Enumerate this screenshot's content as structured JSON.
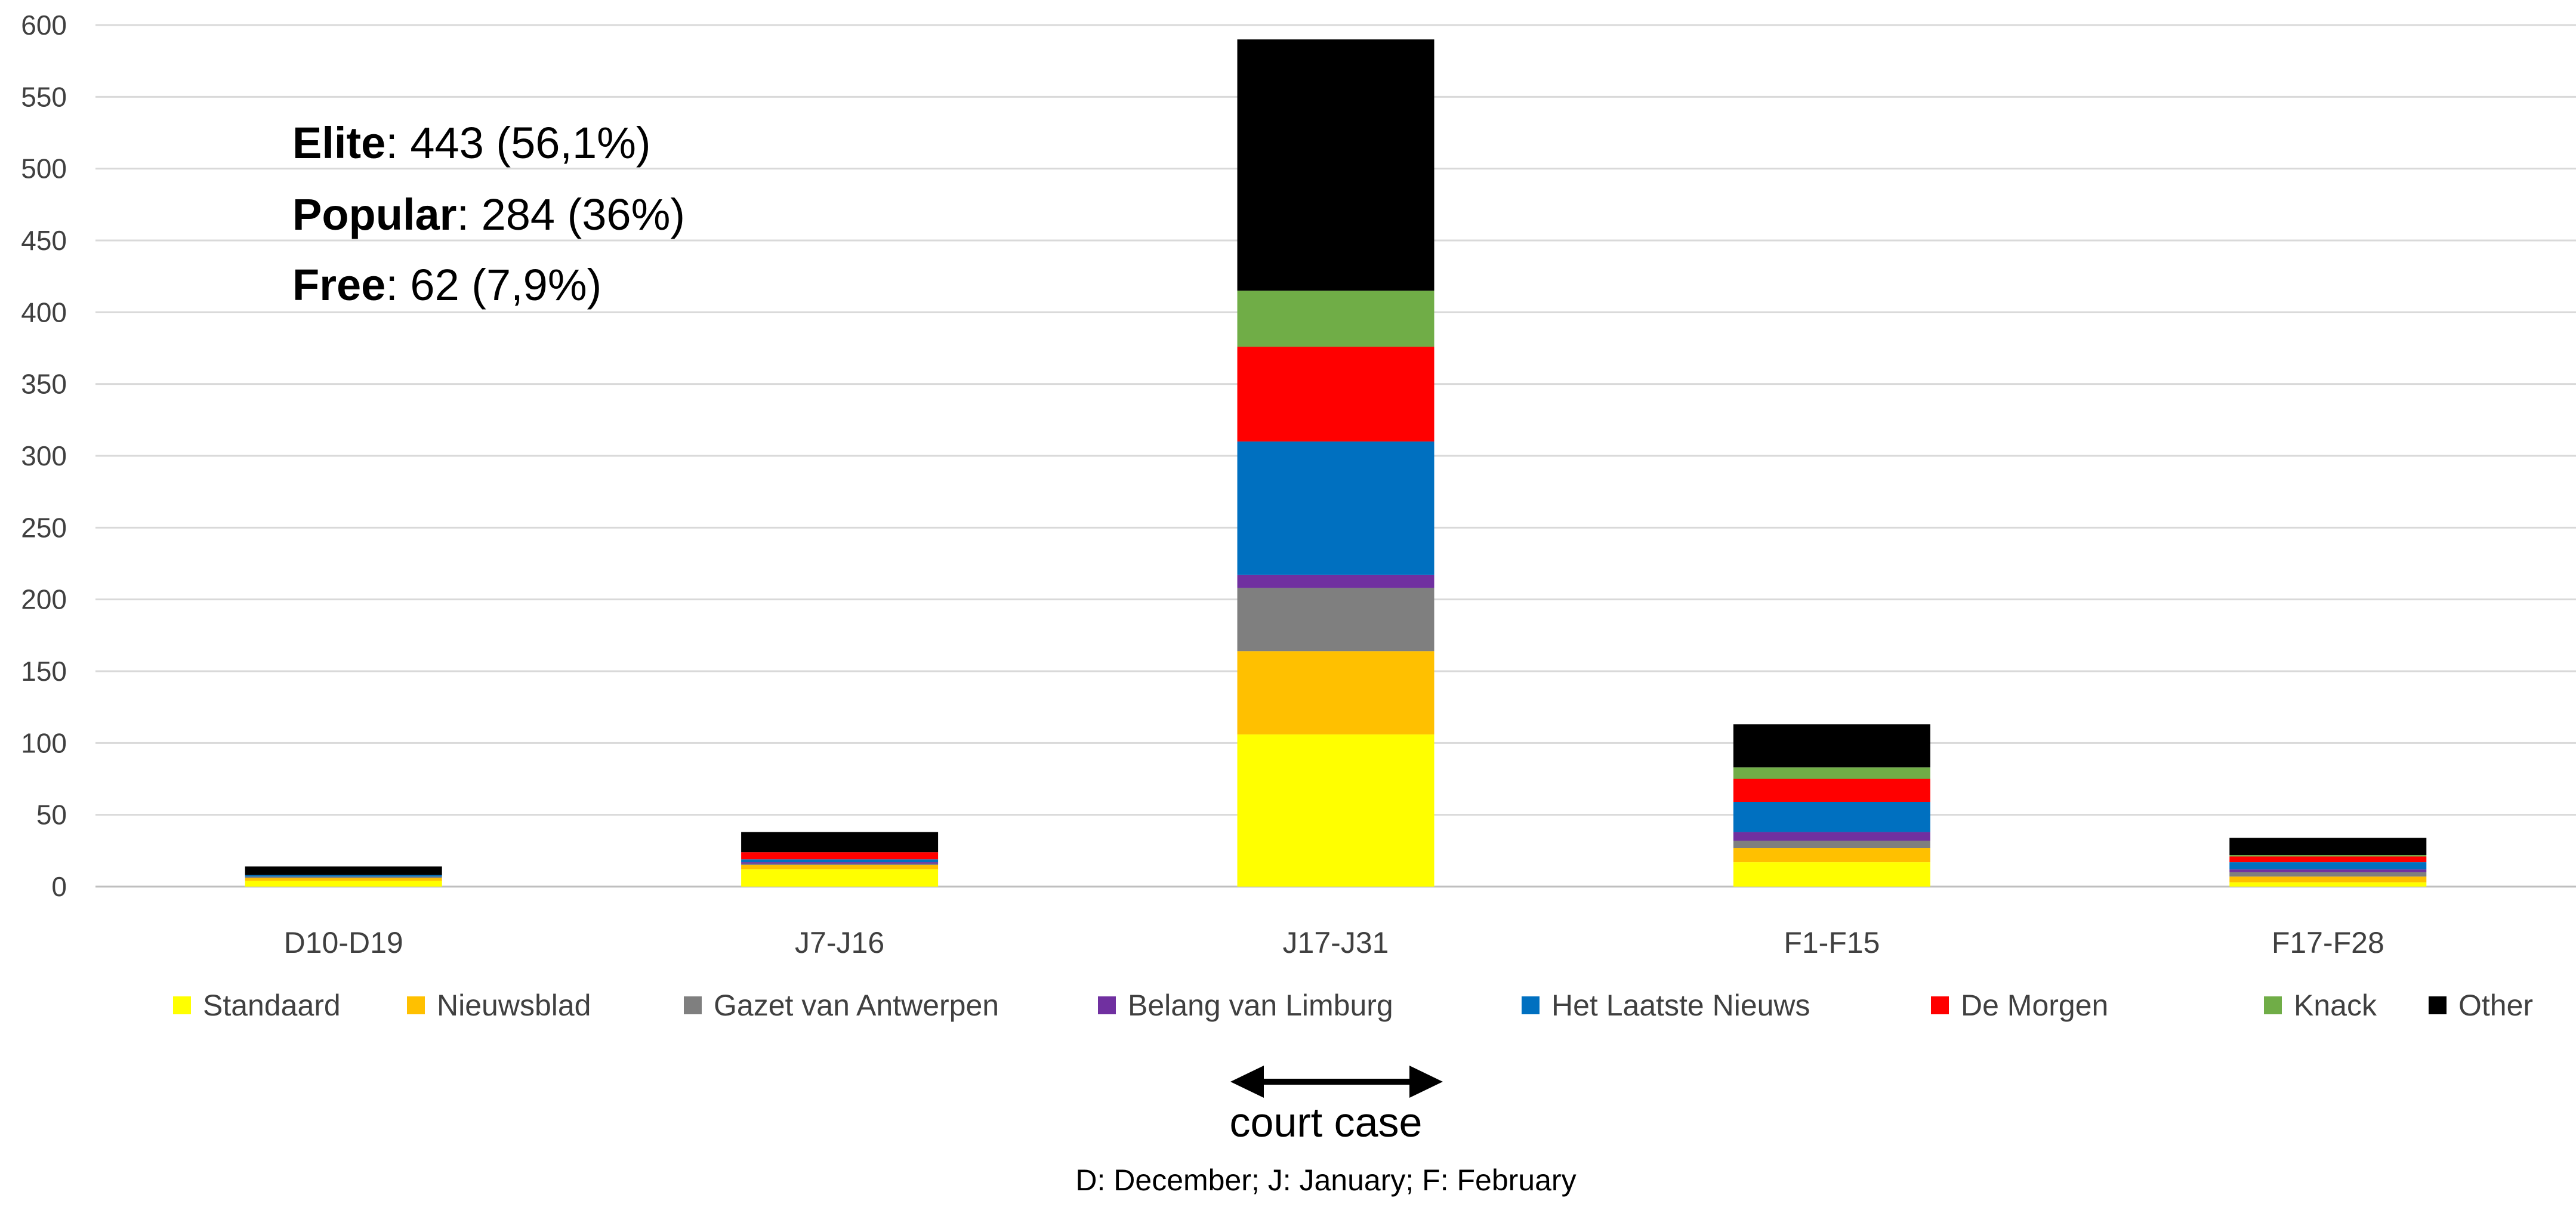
{
  "chart_data": {
    "type": "bar",
    "stacked": true,
    "categories": [
      "D10-D19",
      "J7-J16",
      "J17-J31",
      "F1-F15",
      "F17-F28"
    ],
    "ylim": [
      0,
      600
    ],
    "yticks": [
      0,
      50,
      100,
      150,
      200,
      250,
      300,
      350,
      400,
      450,
      500,
      550,
      600
    ],
    "grid": true,
    "legend_position": "bottom",
    "series": [
      {
        "name": "Standaard",
        "color": "#FFFF00",
        "values": [
          4,
          12,
          106,
          17,
          3
        ]
      },
      {
        "name": "Nieuwsblad",
        "color": "#FFC000",
        "values": [
          2,
          3,
          58,
          10,
          4
        ]
      },
      {
        "name": "Gazet van Antwerpen",
        "color": "#7F7F7F",
        "values": [
          1,
          1,
          44,
          5,
          3
        ]
      },
      {
        "name": "Belang van Limburg",
        "color": "#7030A0",
        "values": [
          0,
          1,
          9,
          6,
          2
        ]
      },
      {
        "name": "Het Laatste Nieuws",
        "color": "#0070C0",
        "values": [
          1,
          2,
          93,
          21,
          5
        ]
      },
      {
        "name": "De Morgen",
        "color": "#FF0000",
        "values": [
          0,
          5,
          66,
          16,
          4
        ]
      },
      {
        "name": "Knack",
        "color": "#70AD47",
        "values": [
          0,
          0,
          39,
          8,
          1
        ]
      },
      {
        "name": "Other",
        "color": "#000000",
        "values": [
          6,
          14,
          175,
          30,
          12
        ]
      }
    ]
  },
  "summary": [
    {
      "name": "Elite",
      "value": ": 443 (56,1%)"
    },
    {
      "name": "Popular",
      "value": ": 284 (36%)"
    },
    {
      "name": "Free",
      "value": ": 62 (7,9%)"
    }
  ],
  "annotation": {
    "arrow_label": "court case",
    "footnote": "D: December; J: January; F: February"
  }
}
